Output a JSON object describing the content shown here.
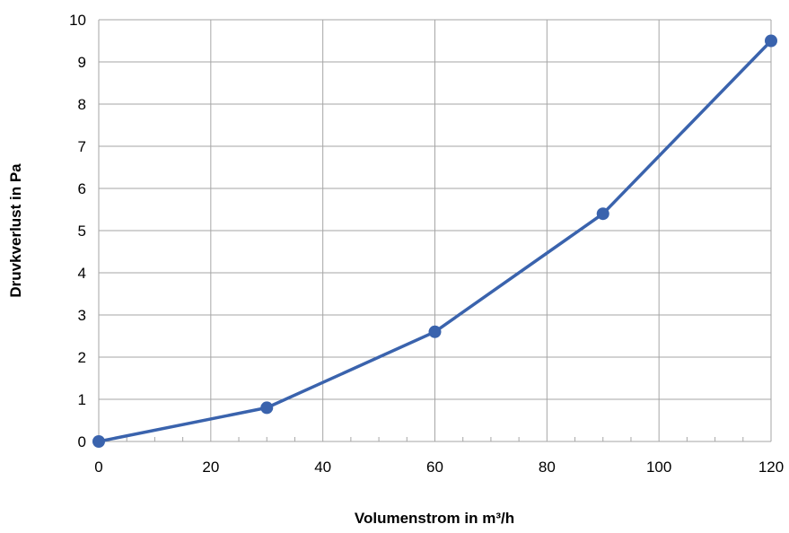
{
  "chart_data": {
    "type": "line",
    "title": "",
    "xlabel": "Volumenstrom in m³/h",
    "ylabel": "Druvkverlust in Pa",
    "xlim": [
      0,
      120
    ],
    "ylim": [
      0,
      10
    ],
    "x_ticks": [
      0,
      20,
      40,
      60,
      80,
      100,
      120
    ],
    "y_ticks": [
      0,
      1,
      2,
      3,
      4,
      5,
      6,
      7,
      8,
      9,
      10
    ],
    "grid": true,
    "legend": "none",
    "series": [
      {
        "color": "#3a63ad",
        "points": [
          {
            "x": 0,
            "y": 0
          },
          {
            "x": 30,
            "y": 0.8
          },
          {
            "x": 60,
            "y": 2.6
          },
          {
            "x": 90,
            "y": 5.4
          },
          {
            "x": 120,
            "y": 9.5
          }
        ]
      }
    ]
  }
}
